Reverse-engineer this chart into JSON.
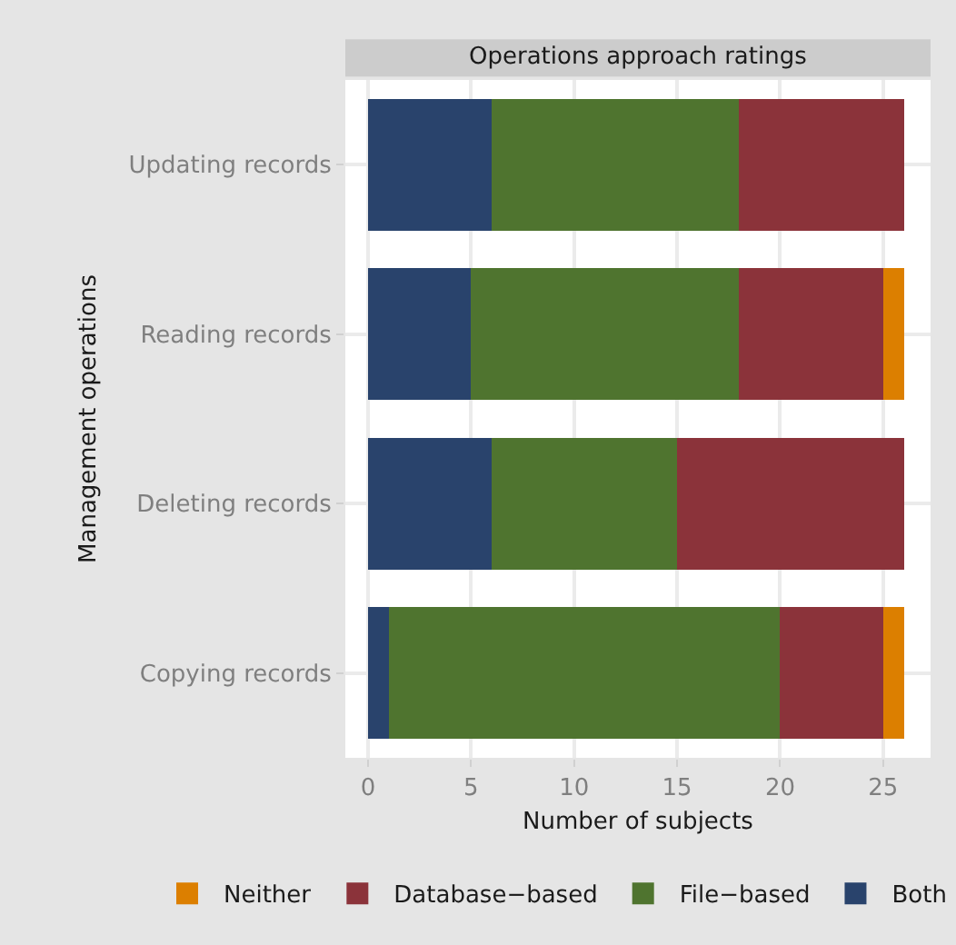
{
  "chart_data": {
    "type": "bar",
    "orientation": "horizontal",
    "stacked": true,
    "title": "Operations approach ratings",
    "xlabel": "Number of subjects",
    "ylabel": "Management operations",
    "categories": [
      "Updating records",
      "Reading records",
      "Deleting records",
      "Copying records"
    ],
    "series": [
      {
        "name": "Both",
        "color": "#29436c",
        "values": [
          6,
          5,
          6,
          1
        ]
      },
      {
        "name": "File−based",
        "color": "#4f742f",
        "values": [
          12,
          13,
          9,
          19
        ]
      },
      {
        "name": "Database−based",
        "color": "#8b333a",
        "values": [
          8,
          7,
          11,
          5
        ]
      },
      {
        "name": "Neither",
        "color": "#dc7f00",
        "values": [
          0,
          1,
          0,
          1
        ]
      }
    ],
    "xlim": [
      -1.1,
      27.3
    ],
    "xticks": [
      0,
      5,
      10,
      15,
      20,
      25
    ],
    "grid": true,
    "legend": "bottom"
  }
}
